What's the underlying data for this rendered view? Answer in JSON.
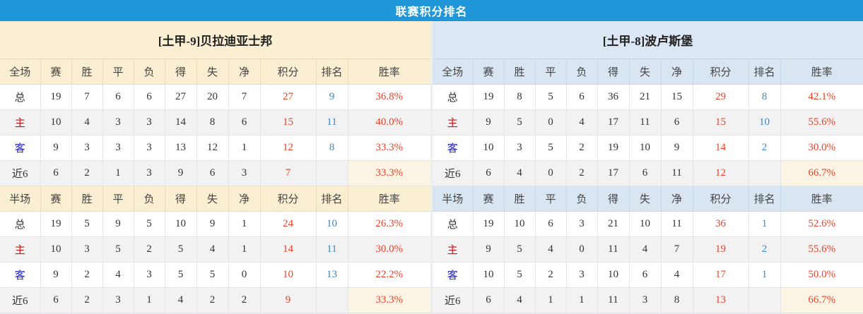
{
  "banner": {
    "title": "联赛积分排名"
  },
  "colors": {
    "banner_bg": "#1e96d7",
    "left_theme_bg": "#faeed3",
    "right_theme_bg": "#dbe8f3",
    "points_red": "#e8432a",
    "rank_blue": "#3f87c5",
    "home_label_red": "#c81414",
    "away_label_blue": "#2323bf",
    "zebra_gray": "#f2f2f2",
    "recent_rate_cream": "#fbf4e5"
  },
  "columns": [
    "赛",
    "胜",
    "平",
    "负",
    "得",
    "失",
    "净",
    "积分",
    "排名",
    "胜率"
  ],
  "teams": [
    {
      "title": "[土甲-9]贝拉迪亚士邦",
      "theme": "cream",
      "sections": [
        {
          "label": "全场",
          "rows": [
            {
              "label": "总",
              "label_style": "dark",
              "cells": [
                "19",
                "7",
                "6",
                "6",
                "27",
                "20",
                "7"
              ],
              "points": "27",
              "rank": "9",
              "rate": "36.8%"
            },
            {
              "label": "主",
              "label_style": "red",
              "cells": [
                "10",
                "4",
                "3",
                "3",
                "14",
                "8",
                "6"
              ],
              "points": "15",
              "rank": "11",
              "rate": "40.0%"
            },
            {
              "label": "客",
              "label_style": "blue",
              "cells": [
                "9",
                "3",
                "3",
                "3",
                "13",
                "12",
                "1"
              ],
              "points": "12",
              "rank": "8",
              "rate": "33.3%"
            },
            {
              "label": "近6",
              "label_style": "dark",
              "cells": [
                "6",
                "2",
                "1",
                "3",
                "9",
                "6",
                "3"
              ],
              "points": "7",
              "rank": "",
              "rate": "33.3%"
            }
          ]
        },
        {
          "label": "半场",
          "rows": [
            {
              "label": "总",
              "label_style": "dark",
              "cells": [
                "19",
                "5",
                "9",
                "5",
                "10",
                "9",
                "1"
              ],
              "points": "24",
              "rank": "10",
              "rate": "26.3%"
            },
            {
              "label": "主",
              "label_style": "red",
              "cells": [
                "10",
                "3",
                "5",
                "2",
                "5",
                "4",
                "1"
              ],
              "points": "14",
              "rank": "11",
              "rate": "30.0%"
            },
            {
              "label": "客",
              "label_style": "blue",
              "cells": [
                "9",
                "2",
                "4",
                "3",
                "5",
                "5",
                "0"
              ],
              "points": "10",
              "rank": "13",
              "rate": "22.2%"
            },
            {
              "label": "近6",
              "label_style": "dark",
              "cells": [
                "6",
                "2",
                "3",
                "1",
                "4",
                "2",
                "2"
              ],
              "points": "9",
              "rank": "",
              "rate": "33.3%"
            }
          ]
        }
      ]
    },
    {
      "title": "[土甲-8]波卢斯堡",
      "theme": "blue",
      "sections": [
        {
          "label": "全场",
          "rows": [
            {
              "label": "总",
              "label_style": "dark",
              "cells": [
                "19",
                "8",
                "5",
                "6",
                "36",
                "21",
                "15"
              ],
              "points": "29",
              "rank": "8",
              "rate": "42.1%"
            },
            {
              "label": "主",
              "label_style": "red",
              "cells": [
                "9",
                "5",
                "0",
                "4",
                "17",
                "11",
                "6"
              ],
              "points": "15",
              "rank": "10",
              "rate": "55.6%"
            },
            {
              "label": "客",
              "label_style": "blue",
              "cells": [
                "10",
                "3",
                "5",
                "2",
                "19",
                "10",
                "9"
              ],
              "points": "14",
              "rank": "2",
              "rate": "30.0%"
            },
            {
              "label": "近6",
              "label_style": "dark",
              "cells": [
                "6",
                "4",
                "0",
                "2",
                "17",
                "6",
                "11"
              ],
              "points": "12",
              "rank": "",
              "rate": "66.7%"
            }
          ]
        },
        {
          "label": "半场",
          "rows": [
            {
              "label": "总",
              "label_style": "dark",
              "cells": [
                "19",
                "10",
                "6",
                "3",
                "21",
                "10",
                "11"
              ],
              "points": "36",
              "rank": "1",
              "rate": "52.6%"
            },
            {
              "label": "主",
              "label_style": "red",
              "cells": [
                "9",
                "5",
                "4",
                "0",
                "11",
                "4",
                "7"
              ],
              "points": "19",
              "rank": "2",
              "rate": "55.6%"
            },
            {
              "label": "客",
              "label_style": "blue",
              "cells": [
                "10",
                "5",
                "2",
                "3",
                "10",
                "6",
                "4"
              ],
              "points": "17",
              "rank": "1",
              "rate": "50.0%"
            },
            {
              "label": "近6",
              "label_style": "dark",
              "cells": [
                "6",
                "4",
                "1",
                "1",
                "11",
                "3",
                "8"
              ],
              "points": "13",
              "rank": "",
              "rate": "66.7%"
            }
          ]
        }
      ]
    }
  ]
}
